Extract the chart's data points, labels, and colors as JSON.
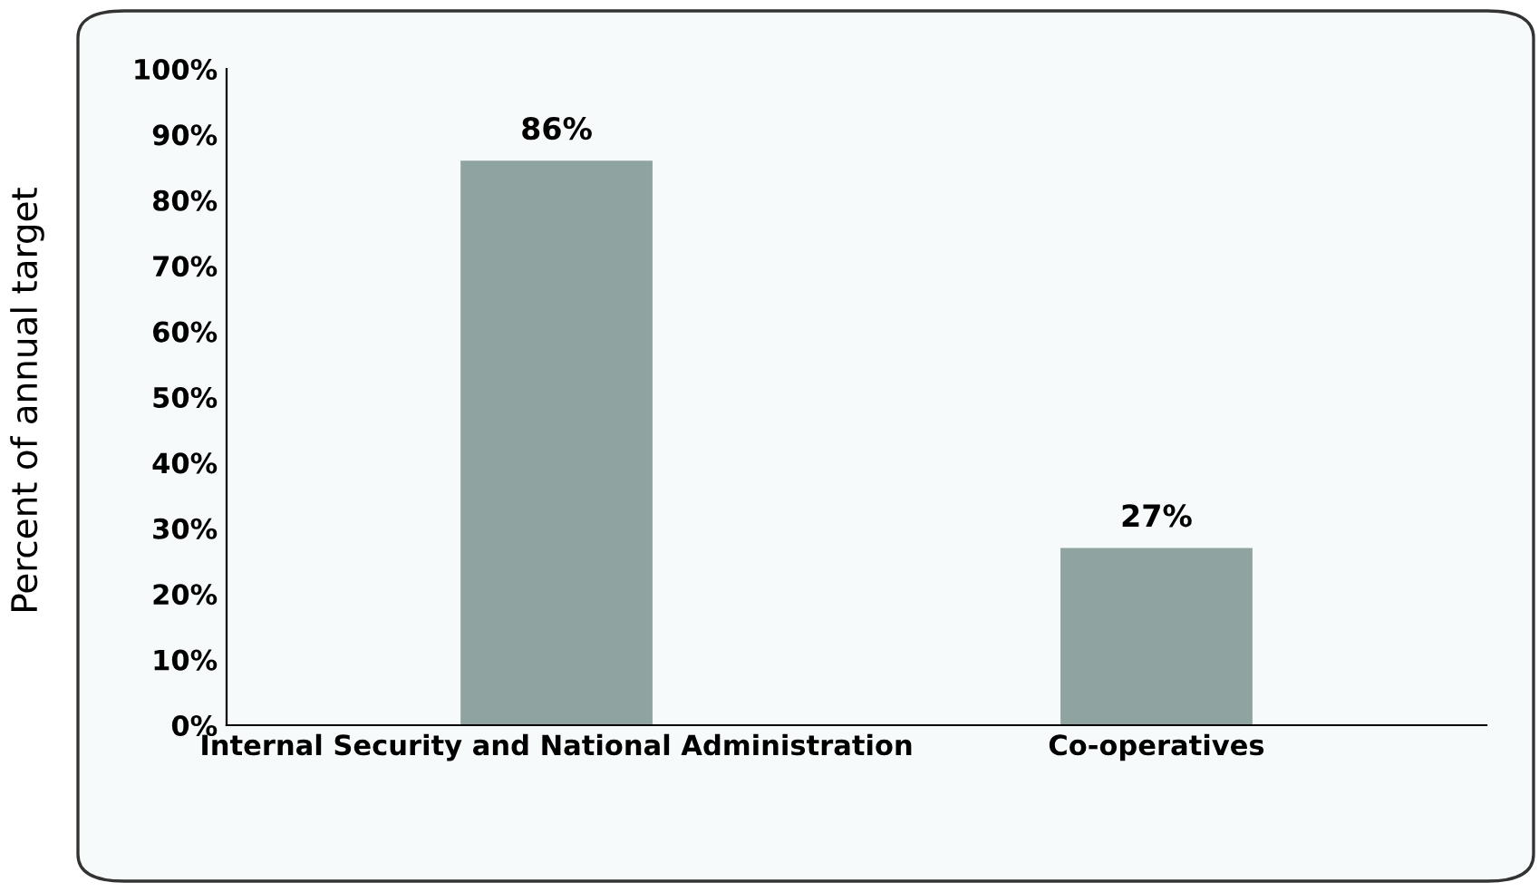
{
  "chart_data": {
    "type": "bar",
    "ylabel": "Percent of annual target",
    "categories": [
      "Internal Security and National Administration",
      "Co-operatives"
    ],
    "values": [
      86,
      27
    ],
    "color": "#8fa3a0",
    "data_labels": true,
    "value_labels": [
      "86%",
      "27%"
    ],
    "ylim": [
      0,
      100
    ],
    "yticks": [
      {
        "value": 0,
        "label": "0%"
      },
      {
        "value": 10,
        "label": "10%"
      },
      {
        "value": 20,
        "label": "20%"
      },
      {
        "value": 30,
        "label": "30%"
      },
      {
        "value": 40,
        "label": "40%"
      },
      {
        "value": 50,
        "label": "50%"
      },
      {
        "value": 60,
        "label": "60%"
      },
      {
        "value": 70,
        "label": "70%"
      },
      {
        "value": 80,
        "label": "80%"
      },
      {
        "value": 90,
        "label": "90%"
      },
      {
        "value": 100,
        "label": "100%"
      }
    ],
    "grid": false,
    "legend": false
  }
}
